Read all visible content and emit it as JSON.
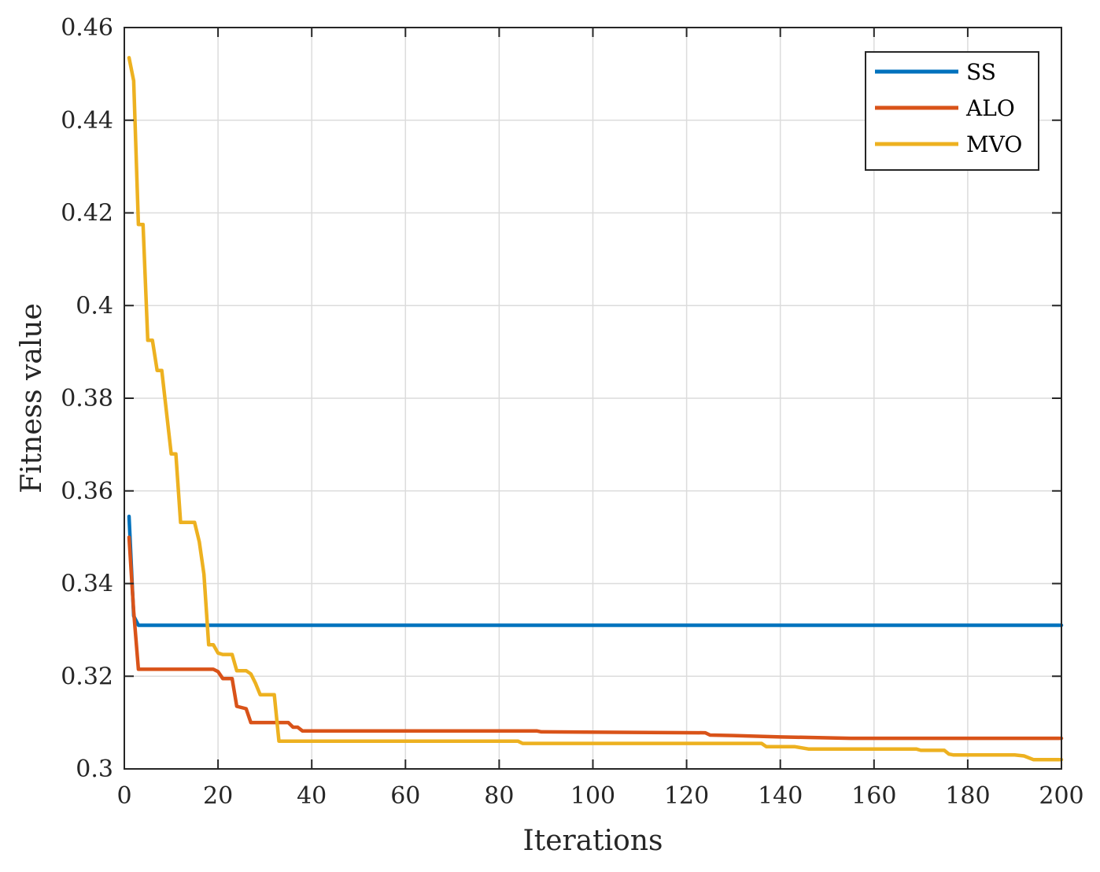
{
  "chart_data": {
    "type": "line",
    "title": "",
    "xlabel": "Iterations",
    "ylabel": "Fitness value",
    "xlim": [
      0,
      200
    ],
    "ylim": [
      0.3,
      0.46
    ],
    "xticks": [
      0,
      20,
      40,
      60,
      80,
      100,
      120,
      140,
      160,
      180,
      200
    ],
    "xtick_labels": [
      "0",
      "20",
      "40",
      "60",
      "80",
      "100",
      "120",
      "140",
      "160",
      "180",
      "200"
    ],
    "yticks": [
      0.3,
      0.32,
      0.34,
      0.36,
      0.38,
      0.4,
      0.42,
      0.44,
      0.46
    ],
    "ytick_labels": [
      "0.3",
      "0.32",
      "0.34",
      "0.36",
      "0.38",
      "0.4",
      "0.42",
      "0.44",
      "0.46"
    ],
    "grid": true,
    "legend_position": "top-right",
    "series": [
      {
        "name": "SS",
        "color": "#0072BD",
        "points": [
          [
            1,
            0.3545
          ],
          [
            2,
            0.333
          ],
          [
            3,
            0.331
          ],
          [
            200,
            0.331
          ]
        ]
      },
      {
        "name": "ALO",
        "color": "#D95319",
        "points": [
          [
            1,
            0.35
          ],
          [
            2,
            0.334
          ],
          [
            3,
            0.3215
          ],
          [
            19,
            0.3215
          ],
          [
            20,
            0.321
          ],
          [
            21,
            0.3195
          ],
          [
            23,
            0.3195
          ],
          [
            24,
            0.3135
          ],
          [
            26,
            0.313
          ],
          [
            27,
            0.31
          ],
          [
            35,
            0.31
          ],
          [
            36,
            0.309
          ],
          [
            37,
            0.309
          ],
          [
            38,
            0.3082
          ],
          [
            88,
            0.3082
          ],
          [
            89,
            0.308
          ],
          [
            124,
            0.3078
          ],
          [
            125,
            0.3073
          ],
          [
            130,
            0.3072
          ],
          [
            140,
            0.3069
          ],
          [
            146,
            0.3068
          ],
          [
            155,
            0.3066
          ],
          [
            200,
            0.3066
          ]
        ]
      },
      {
        "name": "MVO",
        "color": "#EDB120",
        "points": [
          [
            1,
            0.4535
          ],
          [
            2,
            0.4485
          ],
          [
            3,
            0.4175
          ],
          [
            4,
            0.4175
          ],
          [
            5,
            0.3925
          ],
          [
            6,
            0.3925
          ],
          [
            7,
            0.386
          ],
          [
            8,
            0.386
          ],
          [
            10,
            0.368
          ],
          [
            11,
            0.368
          ],
          [
            12,
            0.3532
          ],
          [
            15,
            0.3532
          ],
          [
            16,
            0.349
          ],
          [
            17,
            0.342
          ],
          [
            18,
            0.3268
          ],
          [
            19,
            0.3268
          ],
          [
            20,
            0.325
          ],
          [
            21,
            0.3247
          ],
          [
            23,
            0.3247
          ],
          [
            24,
            0.3212
          ],
          [
            26,
            0.3212
          ],
          [
            27,
            0.3205
          ],
          [
            28,
            0.3185
          ],
          [
            29,
            0.316
          ],
          [
            32,
            0.316
          ],
          [
            33,
            0.306
          ],
          [
            84,
            0.306
          ],
          [
            85,
            0.3055
          ],
          [
            136,
            0.3055
          ],
          [
            137,
            0.3048
          ],
          [
            143,
            0.3048
          ],
          [
            146,
            0.3043
          ],
          [
            169,
            0.3043
          ],
          [
            170,
            0.304
          ],
          [
            175,
            0.304
          ],
          [
            176,
            0.3032
          ],
          [
            177,
            0.303
          ],
          [
            190,
            0.303
          ],
          [
            192,
            0.3028
          ],
          [
            194,
            0.302
          ],
          [
            200,
            0.302
          ]
        ]
      }
    ]
  }
}
